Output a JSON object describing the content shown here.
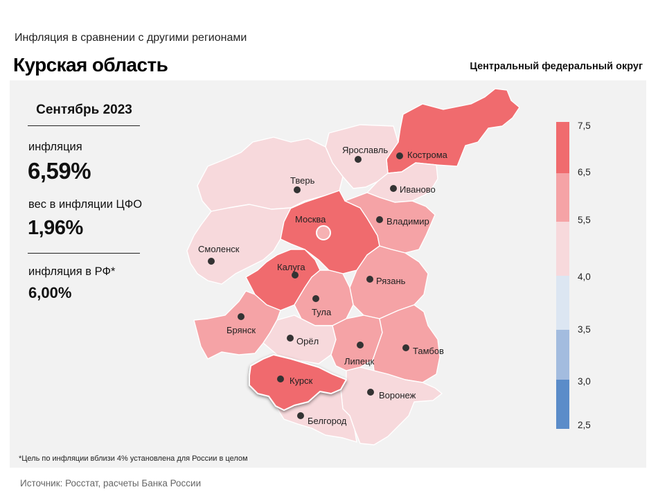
{
  "header": {
    "subtitle": "Инфляция  в сравнении  с другими  регионами",
    "title": "Курская область",
    "district": "Центральный федеральный округ"
  },
  "stats": {
    "period": "Сентябрь 2023",
    "inflation_label": "инфляция",
    "inflation_value": "6,59%",
    "weight_label": "вес в инфляции  ЦФО",
    "weight_value": "1,96%",
    "rf_label": "инфляция  в РФ*",
    "rf_value": "6,00%"
  },
  "regions": [
    {
      "name": "Кострома",
      "band": "6.5-7.5"
    },
    {
      "name": "Ярославль",
      "band": "4.0-5.5"
    },
    {
      "name": "Иваново",
      "band": "4.0-5.5"
    },
    {
      "name": "Тверь",
      "band": "4.0-5.5"
    },
    {
      "name": "Москва",
      "band": "6.5-7.5"
    },
    {
      "name": "Владимир",
      "band": "5.5-6.5"
    },
    {
      "name": "Смоленск",
      "band": "4.0-5.5"
    },
    {
      "name": "Калуга",
      "band": "6.5-7.5"
    },
    {
      "name": "Рязань",
      "band": "5.5-6.5"
    },
    {
      "name": "Тула",
      "band": "5.5-6.5"
    },
    {
      "name": "Брянск",
      "band": "5.5-6.5"
    },
    {
      "name": "Орёл",
      "band": "4.0-5.5"
    },
    {
      "name": "Липецк",
      "band": "5.5-6.5"
    },
    {
      "name": "Тамбов",
      "band": "5.5-6.5"
    },
    {
      "name": "Курск",
      "band": "6.5-7.5"
    },
    {
      "name": "Воронеж",
      "band": "4.0-5.5"
    },
    {
      "name": "Белгород",
      "band": "4.0-5.5"
    }
  ],
  "scale": {
    "labels": [
      "7,5",
      "6,5",
      "5,5",
      "4,0",
      "3,5",
      "3,0",
      "2,5"
    ],
    "colors": {
      "6.5-7.5": "#f06b6e",
      "5.5-6.5": "#f5a3a6",
      "4.0-5.5": "#f7d9dc",
      "3.5-4.0": "#dce6f2",
      "3.0-3.5": "#a3bcdf",
      "2.5-3.0": "#5b8cc9"
    }
  },
  "footnote": "*Цель по инфляции вблизи 4% установлена для России в целом",
  "source": "Источник: Росстат, расчеты Банка России"
}
